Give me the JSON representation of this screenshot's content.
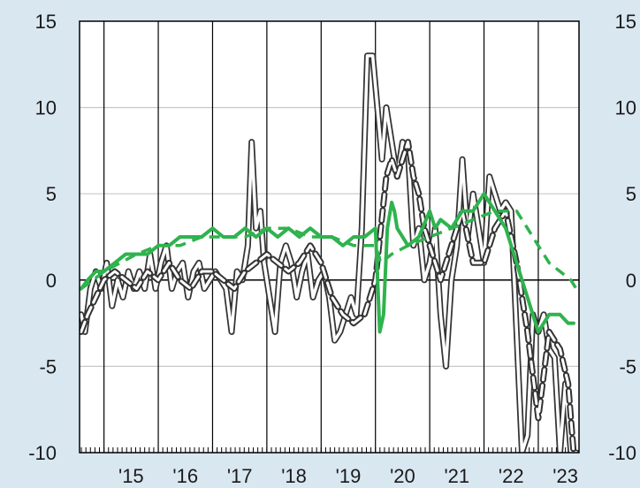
{
  "chart_data": {
    "type": "line",
    "title": "",
    "xlabel": "",
    "ylabel": "",
    "xlim": [
      2014.55,
      2023.75
    ],
    "ylim": [
      -10,
      15
    ],
    "yticks": [
      15,
      10,
      5,
      0,
      -5,
      -10
    ],
    "ytick_labels": [
      "15",
      "10",
      "5",
      "0",
      "-5",
      "-10"
    ],
    "xtick_labels": [
      "'15",
      "'16",
      "'17",
      "'18",
      "'19",
      "'20",
      "'21",
      "'22",
      "'23"
    ],
    "xtick_positions": [
      2015,
      2016,
      2017,
      2018,
      2019,
      2020,
      2021,
      2022,
      2023
    ],
    "gridlines": true,
    "legend": "none",
    "colors": {
      "background": "#d9e7f1",
      "plot_area": "#ffffff",
      "green": "#2fb34e",
      "dark": "#333333"
    },
    "series": [
      {
        "style": "outlined-solid-dark",
        "x": [
          2014.58,
          2014.65,
          2014.75,
          2014.85,
          2014.95,
          2015.05,
          2015.15,
          2015.25,
          2015.35,
          2015.45,
          2015.55,
          2015.65,
          2015.75,
          2015.85,
          2015.95,
          2016.05,
          2016.15,
          2016.25,
          2016.35,
          2016.45,
          2016.55,
          2016.65,
          2016.75,
          2016.85,
          2016.95,
          2017.05,
          2017.15,
          2017.25,
          2017.35,
          2017.45,
          2017.55,
          2017.65,
          2017.72,
          2017.8,
          2017.88,
          2017.95,
          2018.05,
          2018.15,
          2018.25,
          2018.35,
          2018.45,
          2018.55,
          2018.65,
          2018.75,
          2018.85,
          2018.95,
          2019.05,
          2019.15,
          2019.25,
          2019.35,
          2019.45,
          2019.55,
          2019.65,
          2019.75,
          2019.85,
          2019.95,
          2020.05,
          2020.12,
          2020.2,
          2020.3,
          2020.4,
          2020.5,
          2020.6,
          2020.7,
          2020.8,
          2020.9,
          2021.0,
          2021.1,
          2021.2,
          2021.3,
          2021.4,
          2021.5,
          2021.6,
          2021.7,
          2021.8,
          2021.9,
          2022.0,
          2022.1,
          2022.2,
          2022.3,
          2022.4,
          2022.5,
          2022.6,
          2022.7,
          2022.8,
          2022.9,
          2023.0,
          2023.1,
          2023.2,
          2023.3,
          2023.4,
          2023.5,
          2023.6,
          2023.7
        ],
        "values": [
          -2,
          -3,
          -0.5,
          0.5,
          -0.5,
          1,
          -1.5,
          0,
          -1,
          0.5,
          -0.5,
          0.5,
          -0.5,
          1.5,
          -0.5,
          1,
          2,
          -0.5,
          0.5,
          1,
          -1,
          0.5,
          1,
          -0.5,
          0,
          0.5,
          0,
          -0.5,
          -3,
          0.5,
          0,
          2,
          8,
          3,
          4,
          1,
          -1,
          -3,
          1,
          2,
          1,
          -1,
          0.5,
          1.5,
          -1,
          0,
          0.5,
          -1,
          -3.5,
          -3,
          -2,
          -1,
          -2,
          3,
          13,
          13,
          9.5,
          7,
          10,
          8,
          6,
          8,
          7.5,
          2,
          3,
          0,
          1,
          3,
          -2,
          -5,
          0,
          2,
          7,
          2.5,
          5,
          3,
          1,
          6,
          5,
          4,
          4.5,
          4,
          -3,
          -10,
          -9,
          -2,
          -3,
          -2,
          -4,
          -4.5,
          -10,
          -6,
          -10,
          -10
        ]
      },
      {
        "style": "outlined-dashed-dark",
        "x": [
          2014.58,
          2014.7,
          2014.85,
          2015.0,
          2015.2,
          2015.4,
          2015.6,
          2015.8,
          2016.0,
          2016.2,
          2016.4,
          2016.6,
          2016.8,
          2017.0,
          2017.2,
          2017.4,
          2017.6,
          2017.8,
          2018.0,
          2018.2,
          2018.4,
          2018.6,
          2018.8,
          2019.0,
          2019.2,
          2019.4,
          2019.6,
          2019.8,
          2020.0,
          2020.1,
          2020.2,
          2020.3,
          2020.4,
          2020.5,
          2020.6,
          2020.7,
          2020.8,
          2020.9,
          2021.0,
          2021.2,
          2021.4,
          2021.6,
          2021.8,
          2022.0,
          2022.2,
          2022.4,
          2022.6,
          2022.8,
          2023.0,
          2023.2,
          2023.4,
          2023.55,
          2023.65
        ],
        "values": [
          -3,
          -2,
          -1,
          0,
          0.5,
          0,
          -0.5,
          0.5,
          0,
          1,
          0,
          -0.5,
          0.5,
          0.5,
          0,
          -0.5,
          0.5,
          1,
          1.5,
          1,
          0.5,
          1,
          2,
          1,
          -1,
          -2,
          -2.5,
          -2,
          0,
          3,
          6,
          7,
          6,
          7,
          8,
          6,
          5,
          3,
          2,
          0,
          2,
          4,
          1,
          1,
          3,
          4,
          1,
          -3,
          -8,
          -3,
          -4,
          -6,
          -10
        ]
      },
      {
        "style": "solid-green",
        "x": [
          2014.58,
          2014.7,
          2014.85,
          2015.0,
          2015.2,
          2015.4,
          2015.6,
          2015.8,
          2016.0,
          2016.2,
          2016.4,
          2016.6,
          2016.8,
          2017.0,
          2017.2,
          2017.4,
          2017.6,
          2017.8,
          2018.0,
          2018.2,
          2018.4,
          2018.6,
          2018.8,
          2019.0,
          2019.2,
          2019.4,
          2019.6,
          2019.8,
          2020.0,
          2020.08,
          2020.15,
          2020.22,
          2020.3,
          2020.35,
          2020.4,
          2020.6,
          2020.8,
          2021.0,
          2021.1,
          2021.2,
          2021.4,
          2021.6,
          2021.8,
          2022.0,
          2022.2,
          2022.4,
          2022.6,
          2022.8,
          2023.0,
          2023.2,
          2023.4,
          2023.55,
          2023.65
        ],
        "values": [
          -0.5,
          0,
          0.5,
          0.5,
          1,
          1.5,
          1.5,
          1.5,
          2,
          2,
          2.5,
          2.5,
          2.5,
          3,
          2.5,
          2.5,
          3,
          2.5,
          3,
          2.5,
          3,
          2.5,
          3,
          2.5,
          2.5,
          2,
          2.5,
          2.5,
          3,
          -3,
          -2,
          3,
          4.5,
          4,
          3,
          2,
          2.5,
          4,
          3,
          3.5,
          3,
          4,
          4,
          5,
          4,
          3,
          1,
          -1,
          -3,
          -2,
          -2,
          -2.5,
          -2.5
        ]
      },
      {
        "style": "dashed-green",
        "x": [
          2014.58,
          2014.8,
          2015.0,
          2015.3,
          2015.6,
          2016.0,
          2016.4,
          2016.8,
          2017.2,
          2017.6,
          2018.0,
          2018.4,
          2018.8,
          2019.2,
          2019.6,
          2020.0,
          2020.1,
          2020.3,
          2020.6,
          2021.0,
          2021.4,
          2021.8,
          2022.2,
          2022.6,
          2022.8,
          2023.0,
          2023.2,
          2023.4,
          2023.6,
          2023.7
        ],
        "values": [
          -0.5,
          0,
          0.5,
          1,
          1.5,
          2,
          2,
          2.5,
          2.5,
          2.5,
          3,
          3,
          2.5,
          2.5,
          2,
          2,
          1,
          1.5,
          2,
          2.5,
          3,
          3.5,
          4,
          4,
          3,
          2,
          1,
          0.5,
          0,
          -0.5
        ]
      }
    ]
  }
}
